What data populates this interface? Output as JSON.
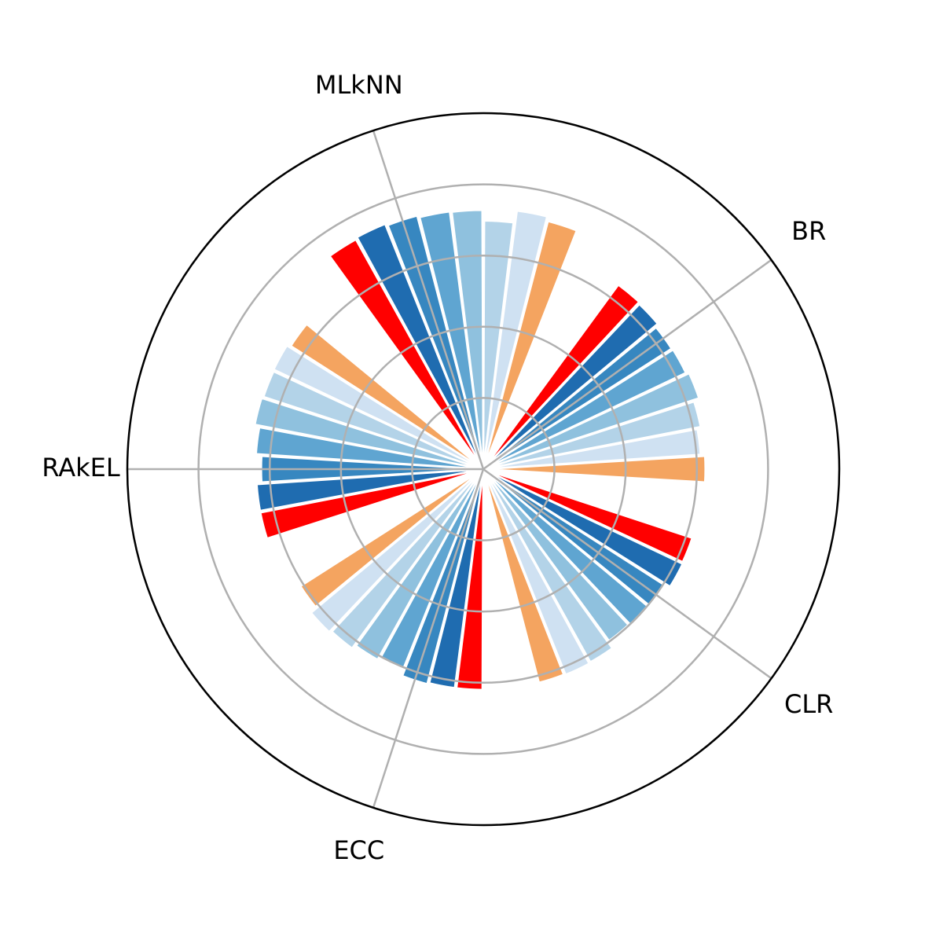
{
  "chart_data": {
    "type": "polar_bar",
    "categories": [
      "BR",
      "MLkNN",
      "RAkEL",
      "ECC",
      "CLR"
    ],
    "ylim": [
      0,
      5
    ],
    "yticks": [
      1,
      2,
      3,
      4
    ],
    "grid": true,
    "series": [
      {
        "color": "#f4a460",
        "values": [
          3.12,
          3.6,
          3.21,
          3.05,
          3.1
        ]
      },
      {
        "color": "#cfe1f2",
        "values": [
          3.06,
          3.66,
          3.26,
          3.15,
          3.11
        ]
      },
      {
        "color": "#b3d3e8",
        "values": [
          3.11,
          3.49,
          3.25,
          3.12,
          3.1
        ]
      },
      {
        "color": "#8fc1de",
        "values": [
          3.19,
          3.64,
          3.27,
          3.06,
          2.99
        ]
      },
      {
        "color": "#5fa5d1",
        "values": [
          3.15,
          3.65,
          3.2,
          3.02,
          3.0
        ]
      },
      {
        "color": "#3787c0",
        "values": [
          3.14,
          3.68,
          3.12,
          3.12,
          3.02
        ]
      },
      {
        "color": "#1f6cb0",
        "values": [
          3.19,
          3.71,
          3.19,
          3.1,
          3.1
        ]
      },
      {
        "color": "#ff0000",
        "values": [
          3.21,
          3.69,
          3.19,
          3.1,
          3.09
        ]
      }
    ]
  }
}
